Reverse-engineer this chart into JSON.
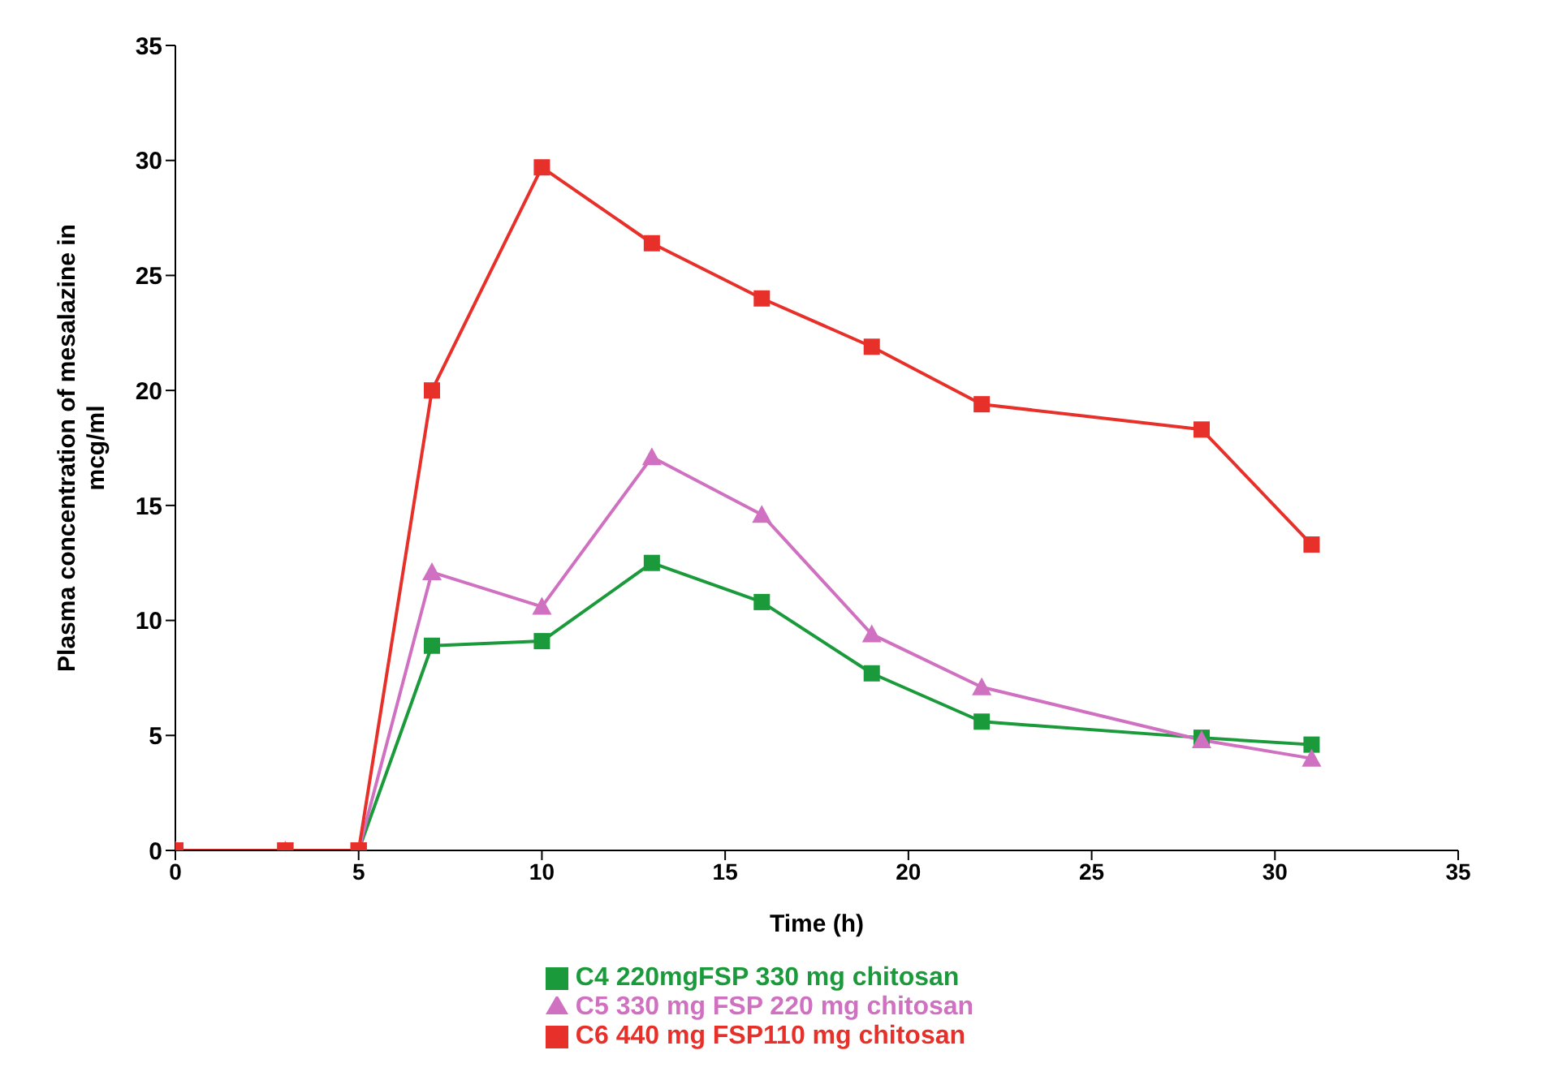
{
  "chart_data": {
    "type": "line",
    "xlabel": "Time    (h)",
    "ylabel": "Plasma concentration of mesalazine in mcg/ml",
    "x": [
      0,
      3,
      5,
      7,
      10,
      13,
      16,
      19,
      22,
      28,
      31
    ],
    "series": [
      {
        "name": "C4 220mgFSP 330 mg chitosan",
        "color": "#1a9a3a",
        "marker": "square",
        "values": [
          0,
          0,
          0,
          8.9,
          9.1,
          12.5,
          10.8,
          7.7,
          5.6,
          4.9,
          4.6
        ]
      },
      {
        "name": "C5 330 mg FSP 220 mg chitosan",
        "color": "#d070c0",
        "marker": "triangle",
        "values": [
          0,
          0,
          0,
          12.1,
          10.6,
          17.1,
          14.6,
          9.4,
          7.1,
          4.8,
          4.0
        ]
      },
      {
        "name": "C6 440 mg FSP110 mg chitosan",
        "color": "#e8302a",
        "marker": "square",
        "values": [
          0,
          0,
          0,
          20,
          29.7,
          26.4,
          24,
          21.9,
          19.4,
          18.3,
          13.3
        ]
      }
    ],
    "xlim": [
      0,
      35
    ],
    "xticks": [
      0,
      5,
      10,
      15,
      20,
      25,
      30,
      35
    ],
    "ylim": [
      0,
      35
    ],
    "yticks": [
      0,
      5,
      10,
      15,
      20,
      25,
      30,
      35
    ],
    "grid": false,
    "legend": "bottom",
    "line_style": "solid"
  }
}
